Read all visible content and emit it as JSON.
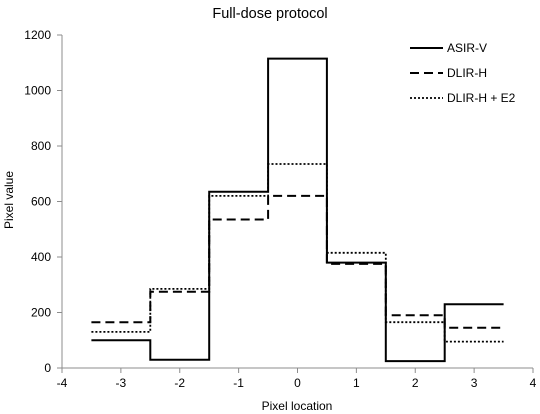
{
  "chart_data": {
    "type": "line",
    "step": "mid",
    "title": "Full-dose protocol",
    "xlabel": "Pixel location",
    "ylabel": "Pixel value",
    "xlim": [
      -4,
      4
    ],
    "ylim": [
      0,
      1200
    ],
    "x_ticks": [
      -4,
      -3,
      -2,
      -1,
      0,
      1,
      2,
      3,
      4
    ],
    "y_ticks": [
      0,
      200,
      400,
      600,
      800,
      1000,
      1200
    ],
    "x_tick_labels": [
      "-4",
      "-3",
      "-2",
      "-1",
      "0",
      "1",
      "2",
      "3",
      "4"
    ],
    "y_tick_labels": [
      "0",
      "200",
      "400",
      "600",
      "800",
      "1000",
      "1200"
    ],
    "grid": false,
    "legend_position": "top-right",
    "x": [
      -3,
      -2,
      -1,
      0,
      1,
      2,
      3
    ],
    "series": [
      {
        "name": "ASIR-V",
        "values": [
          100,
          30,
          635,
          1115,
          380,
          25,
          230
        ],
        "dash": "solid",
        "color": "#000000"
      },
      {
        "name": "DLIR-H",
        "values": [
          165,
          275,
          535,
          620,
          375,
          190,
          145
        ],
        "dash": "dashed",
        "color": "#000000"
      },
      {
        "name": "DLIR-H + E2",
        "values": [
          130,
          285,
          620,
          735,
          415,
          165,
          95
        ],
        "dash": "dotted",
        "color": "#000000"
      }
    ]
  }
}
